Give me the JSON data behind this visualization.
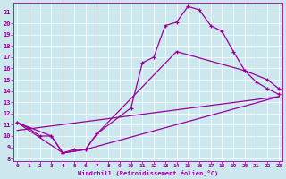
{
  "bg_color": "#cce8ee",
  "line_color": "#990099",
  "xlabel": "Windchill (Refroidissement éolien,°C)",
  "xlim": [
    -0.3,
    23.3
  ],
  "ylim": [
    7.8,
    21.8
  ],
  "xticks": [
    0,
    1,
    2,
    3,
    4,
    5,
    6,
    7,
    8,
    9,
    10,
    11,
    12,
    13,
    14,
    15,
    16,
    17,
    18,
    19,
    20,
    21,
    22,
    23
  ],
  "yticks": [
    8,
    9,
    10,
    11,
    12,
    13,
    14,
    15,
    16,
    17,
    18,
    19,
    20,
    21
  ],
  "main_x": [
    0,
    1,
    2,
    3,
    4,
    5,
    6,
    7,
    10,
    11,
    12,
    13,
    14,
    15,
    16,
    17,
    18,
    19,
    20,
    21,
    22,
    23
  ],
  "main_y": [
    11.2,
    10.7,
    10.0,
    10.0,
    8.5,
    8.8,
    8.8,
    10.2,
    12.5,
    16.5,
    17.0,
    19.8,
    20.1,
    21.5,
    21.2,
    19.8,
    19.3,
    17.5,
    15.8,
    14.8,
    14.2,
    13.7
  ],
  "line2_x": [
    0,
    3,
    4,
    6,
    7,
    14,
    20,
    22,
    23
  ],
  "line2_y": [
    11.2,
    10.0,
    8.5,
    8.8,
    10.2,
    17.5,
    15.8,
    15.0,
    14.2
  ],
  "line3_x": [
    0,
    4,
    6,
    23
  ],
  "line3_y": [
    11.2,
    8.5,
    8.8,
    13.5
  ],
  "line4_x": [
    0,
    23
  ],
  "line4_y": [
    10.5,
    13.5
  ]
}
